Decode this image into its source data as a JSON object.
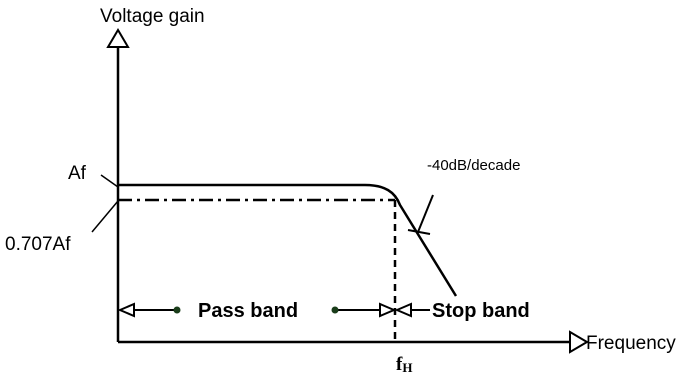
{
  "y_axis_label": "Voltage gain",
  "x_axis_label": "Frequency",
  "level_labels": [
    "Af",
    "0.707Af"
  ],
  "slope_label": "-40dB/decade",
  "bands": [
    "Pass band",
    "Stop band"
  ],
  "cutoff_label": {
    "main": "f",
    "sub": "H"
  }
}
